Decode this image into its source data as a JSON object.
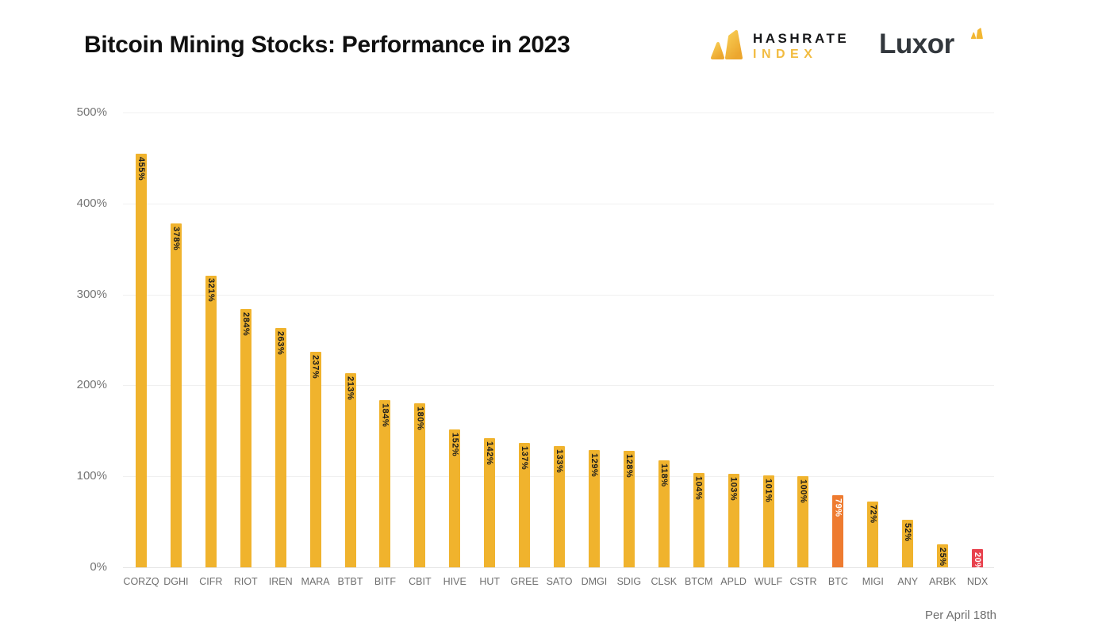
{
  "header": {
    "hashrate_index_logo": {
      "line1": "HASHRATE",
      "line2": "INDEX"
    },
    "luxor_logo": {
      "text": "Luxor"
    }
  },
  "colors": {
    "brand_yellow": "#f2b733",
    "brand_yellow_light": "#f8cf55",
    "brand_dark": "#33383d",
    "grid": "#f0f0f0",
    "axis_text": "#757575"
  },
  "chart_data": {
    "type": "bar",
    "title": "Bitcoin Mining Stocks: Performance in 2023",
    "categories": [
      "CORZQ",
      "DGHI",
      "CIFR",
      "RIOT",
      "IREN",
      "MARA",
      "BTBT",
      "BITF",
      "CBIT",
      "HIVE",
      "HUT",
      "GREE",
      "SATO",
      "DMGI",
      "SDIG",
      "CLSK",
      "BTCM",
      "APLD",
      "WULF",
      "CSTR",
      "BTC",
      "MIGI",
      "ANY",
      "ARBK",
      "NDX"
    ],
    "values": [
      455,
      378,
      321,
      284,
      263,
      237,
      213,
      184,
      180,
      152,
      142,
      137,
      133,
      129,
      128,
      118,
      104,
      103,
      101,
      100,
      79,
      72,
      52,
      25,
      20
    ],
    "unit": "%",
    "ylim": [
      0,
      500
    ],
    "ytick_step": 100,
    "yticks": [
      "500%",
      "400%",
      "300%",
      "200%",
      "100%",
      "0%"
    ],
    "grid": true,
    "legend": false,
    "value_label_rotation": 90,
    "bar_color_default": "#f0b32d",
    "value_label_color_default": "#1b1b1b",
    "highlighted_bars": {
      "BTC": "#ee7b30",
      "NDX": "#e8414d"
    },
    "value_label_color_highlight": "#ffffff",
    "annotation": "Per April 18th"
  }
}
